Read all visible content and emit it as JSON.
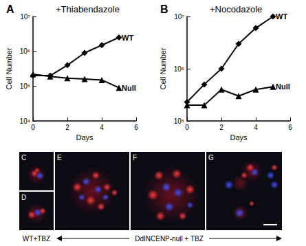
{
  "chart_data": [
    {
      "type": "line",
      "panel": "A",
      "title": "+Thiabendazole",
      "x_label": "Days",
      "y_label": "Cell Number",
      "x": [
        0,
        1,
        2,
        3,
        4,
        5
      ],
      "series": [
        {
          "name": "WT",
          "color": "#000000",
          "marker": "diamond",
          "values": [
            200000,
            200000,
            400000,
            900000,
            1500000,
            2500000
          ]
        },
        {
          "name": "Null",
          "color": "#000000",
          "marker": "triangle",
          "values": [
            220000,
            190000,
            170000,
            160000,
            150000,
            90000
          ]
        }
      ],
      "xlim": [
        0,
        6
      ],
      "xticks": [
        0,
        2,
        4,
        6
      ],
      "ylim": [
        10000,
        10000000
      ],
      "yticks": [
        {
          "value": 10000,
          "label": "10⁴"
        },
        {
          "value": 100000,
          "label": "10⁵"
        },
        {
          "value": 1000000,
          "label": "10⁶"
        },
        {
          "value": 10000000,
          "label": "10⁷"
        }
      ],
      "log": "y",
      "grid": false
    },
    {
      "type": "line",
      "panel": "B",
      "title": "+Nocodazole",
      "x_label": "Days",
      "y_label": "Cell Number",
      "x": [
        0,
        1,
        2,
        3,
        4,
        5
      ],
      "series": [
        {
          "name": "WT",
          "color": "#000000",
          "marker": "diamond",
          "values": [
            230000,
            500000,
            1000000,
            3000000,
            6000000,
            10000000
          ]
        },
        {
          "name": "Null",
          "color": "#000000",
          "marker": "triangle",
          "values": [
            200000,
            200000,
            400000,
            300000,
            400000,
            450000
          ]
        }
      ],
      "xlim": [
        0,
        6
      ],
      "xticks": [
        0,
        2,
        4,
        6
      ],
      "ylim": [
        100000,
        10000000
      ],
      "yticks": [
        {
          "value": 100000,
          "label": "10⁵"
        },
        {
          "value": 1000000,
          "label": "10⁶"
        },
        {
          "value": 10000000,
          "label": "10⁷"
        }
      ],
      "log": "y",
      "grid": false
    }
  ],
  "images": {
    "panels": [
      {
        "label": "C"
      },
      {
        "label": "D"
      },
      {
        "label": "E"
      },
      {
        "label": "F"
      },
      {
        "label": "G"
      }
    ],
    "captions": {
      "wt": "WT+TBZ",
      "null": "DdINCENP-null + TBZ"
    }
  }
}
